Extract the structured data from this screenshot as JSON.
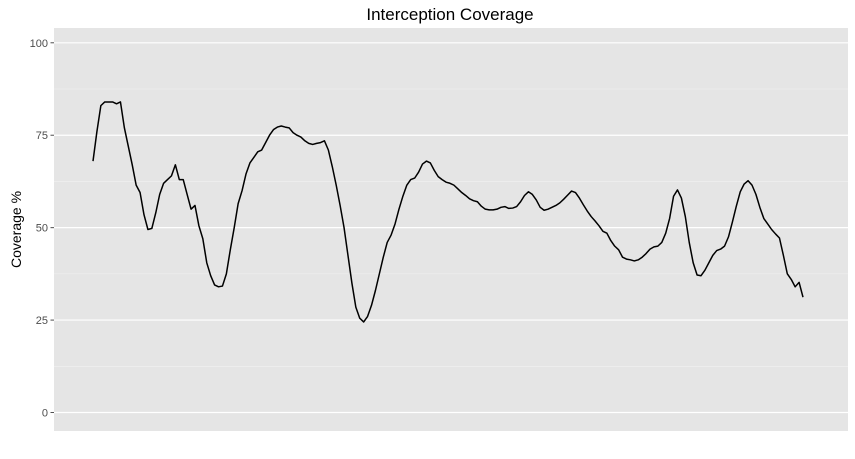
{
  "chart_data": {
    "type": "line",
    "title": "Interception Coverage",
    "xlabel": "",
    "ylabel": "Coverage %",
    "ylim": [
      -5,
      104
    ],
    "yticks": [
      0,
      25,
      50,
      75,
      100
    ],
    "ytick_labels": [
      "0",
      "25",
      "50",
      "75",
      "100"
    ],
    "grid": true,
    "legend": "none",
    "x_axis_labels_shown": false,
    "colors": {
      "panel": "#E5E5E5",
      "grid_major": "#FFFFFF",
      "grid_minor": "#F2F2F2",
      "line": "#000000",
      "tick": "#4D4D4D"
    },
    "series": [
      {
        "values": [
          68,
          76,
          83,
          84,
          84,
          84,
          83.5,
          84,
          77,
          72,
          67,
          61.5,
          59.5,
          53.5,
          49.5,
          49.8,
          54,
          59,
          62,
          63,
          64,
          67,
          63,
          63,
          59,
          55,
          56,
          50.5,
          47,
          40.5,
          37,
          34.5,
          34,
          34.2,
          37.5,
          44,
          50,
          56.5,
          60,
          64.5,
          67.5,
          69,
          70.5,
          71,
          73,
          75,
          76.5,
          77.2,
          77.5,
          77.2,
          77,
          75.7,
          75,
          74.5,
          73.5,
          72.8,
          72.5,
          72.8,
          73,
          73.5,
          71,
          66.5,
          61.5,
          56,
          50,
          42.5,
          35,
          28.5,
          25.5,
          24.5,
          26,
          29,
          33,
          37.5,
          42,
          46,
          48,
          51,
          55,
          58.5,
          61.5,
          63,
          63.4,
          65,
          67.2,
          68,
          67.5,
          65.5,
          63.8,
          63,
          62.3,
          62,
          61.5,
          60.5,
          59.5,
          58.7,
          57.8,
          57.3,
          57,
          55.8,
          55,
          54.8,
          54.8,
          55,
          55.5,
          55.7,
          55.2,
          55.3,
          55.7,
          57,
          58.7,
          59.7,
          59,
          57.5,
          55.5,
          54.7,
          55,
          55.5,
          56,
          56.7,
          57.7,
          58.8,
          59.9,
          59.5,
          58,
          56.2,
          54.5,
          53,
          51.8,
          50.5,
          49,
          48.5,
          46.5,
          45,
          44,
          42,
          41.5,
          41.3,
          41,
          41.3,
          42,
          43,
          44.2,
          44.8,
          45,
          46,
          48.5,
          52.5,
          58.5,
          60.2,
          58,
          53,
          46,
          40.5,
          37.2,
          37,
          38.5,
          40.5,
          42.5,
          43.8,
          44.2,
          45,
          47.5,
          51.5,
          55.8,
          59.7,
          61.8,
          62.7,
          61.5,
          59,
          55.5,
          52.5,
          51,
          49.5,
          48.3,
          47.2,
          42.5,
          37.5,
          36,
          34,
          35.2,
          31.2
        ]
      }
    ]
  }
}
